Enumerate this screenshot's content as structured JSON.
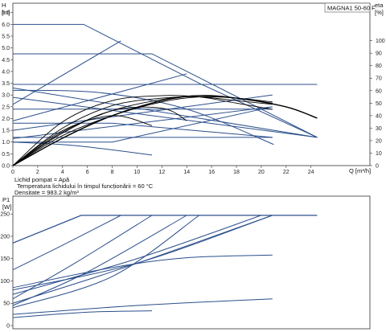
{
  "chart_data": [
    {
      "type": "line",
      "title": "MAGNA1 50-60 F",
      "ylabel_left": [
        "H",
        "[m]"
      ],
      "ylabel_right": [
        "eta",
        "[%]"
      ],
      "xlabel": "Q [m³/h]",
      "x_ticks": [
        0,
        2,
        4,
        6,
        8,
        10,
        12,
        14,
        16,
        18,
        20,
        22,
        24
      ],
      "y_ticks_left": [
        "0.0",
        "0.5",
        "1.0",
        "1.5",
        "2.0",
        "2.5",
        "3.0",
        "3.5",
        "4.0",
        "4.5",
        "5.0",
        "5.5",
        "6.0",
        "6.5"
      ],
      "y_ticks_right": [
        0,
        10,
        20,
        30,
        40,
        50,
        60,
        70,
        80,
        90,
        100
      ],
      "xlim": [
        0,
        27
      ],
      "ylim_left": [
        0,
        6.9
      ],
      "ylim_right": [
        0,
        130
      ],
      "grid": false,
      "series": [
        {
          "role": "head",
          "x": [
            0,
            5.7,
            15,
            24.5
          ],
          "y": [
            6.0,
            6.0,
            3.5,
            1.2
          ]
        },
        {
          "role": "head",
          "x": [
            0,
            11.2,
            24.5
          ],
          "y": [
            4.75,
            4.75,
            1.2
          ]
        },
        {
          "role": "head",
          "x": [
            0,
            24.5
          ],
          "y": [
            3.45,
            3.45
          ]
        },
        {
          "role": "head",
          "x": [
            0,
            24.5
          ],
          "y": [
            3.3,
            1.2
          ]
        },
        {
          "role": "head",
          "x": [
            0,
            24.5
          ],
          "y": [
            2.9,
            1.2
          ]
        },
        {
          "role": "head",
          "x": [
            0,
            20.9
          ],
          "y": [
            2.4,
            2.4
          ]
        },
        {
          "role": "head",
          "x": [
            0,
            8,
            20.9
          ],
          "y": [
            1.8,
            1.8,
            1.2
          ]
        },
        {
          "role": "head",
          "x": [
            0,
            20.9
          ],
          "y": [
            1.2,
            1.2
          ]
        },
        {
          "role": "head",
          "x": [
            0,
            8,
            20.9
          ],
          "y": [
            1.0,
            1.0,
            2.5
          ]
        },
        {
          "role": "head",
          "x": [
            0,
            5,
            11.2
          ],
          "y": [
            1.0,
            0.85,
            0.45
          ]
        },
        {
          "role": "proportional",
          "x": [
            0,
            8.7
          ],
          "y": [
            2.6,
            5.3
          ]
        },
        {
          "role": "proportional",
          "x": [
            0,
            14
          ],
          "y": [
            1.9,
            3.9
          ]
        },
        {
          "role": "proportional",
          "x": [
            0,
            20.9
          ],
          "y": [
            1.5,
            3.0
          ]
        },
        {
          "role": "proportional",
          "x": [
            0,
            20.9
          ],
          "y": [
            1.15,
            2.5
          ]
        },
        {
          "role": "const-curve",
          "x": [
            0,
            7,
            14,
            21
          ],
          "y": [
            3.2,
            3.1,
            2.4,
            0.9
          ]
        },
        {
          "role": "efficiency",
          "x": [
            0,
            4,
            8,
            12,
            15,
            18,
            20.9
          ],
          "y": [
            0,
            35,
            52,
            56,
            55,
            50,
            45
          ]
        },
        {
          "role": "efficiency",
          "x": [
            0,
            4,
            8,
            12,
            15,
            18,
            20.9
          ],
          "y": [
            0,
            30,
            48,
            54,
            55,
            52,
            49
          ]
        },
        {
          "role": "efficiency",
          "x": [
            0,
            4,
            8,
            12,
            15,
            18,
            20.9
          ],
          "y": [
            0,
            27,
            44,
            53,
            56,
            54,
            50
          ]
        },
        {
          "role": "efficiency",
          "x": [
            0,
            4,
            8,
            12,
            15,
            18,
            20.9
          ],
          "y": [
            0,
            24,
            40,
            51,
            55,
            54,
            51
          ]
        },
        {
          "role": "efficiency",
          "x": [
            0,
            4,
            8,
            12,
            15,
            18,
            22,
            24.5
          ],
          "y": [
            0,
            22,
            40,
            52,
            56,
            54,
            47,
            38
          ]
        },
        {
          "role": "efficiency",
          "x": [
            0,
            4,
            8,
            11.2
          ],
          "y": [
            0,
            28,
            40,
            32
          ]
        },
        {
          "role": "efficiency",
          "x": [
            0,
            4,
            8,
            12,
            14
          ],
          "y": [
            0,
            26,
            44,
            46,
            36
          ]
        }
      ]
    },
    {
      "type": "line",
      "title": "",
      "ylabel": [
        "P1",
        "[W]"
      ],
      "xlabel": "",
      "y_ticks": [
        0,
        50,
        100,
        150,
        200,
        250
      ],
      "xlim": [
        0,
        27
      ],
      "ylim": [
        0,
        290
      ],
      "grid": false,
      "series": [
        {
          "x": [
            0,
            5.5,
            24.5
          ],
          "y": [
            185,
            247,
            247
          ]
        },
        {
          "x": [
            0,
            4,
            8.7
          ],
          "y": [
            125,
            180,
            247
          ]
        },
        {
          "x": [
            0,
            5,
            11.2
          ],
          "y": [
            60,
            140,
            247
          ]
        },
        {
          "x": [
            0,
            6,
            14
          ],
          "y": [
            45,
            120,
            247
          ]
        },
        {
          "x": [
            0,
            8,
            15
          ],
          "y": [
            40,
            110,
            247
          ]
        },
        {
          "x": [
            0,
            9,
            20.9
          ],
          "y": [
            50,
            130,
            247
          ]
        },
        {
          "x": [
            0,
            10,
            20
          ],
          "y": [
            70,
            150,
            247
          ]
        },
        {
          "x": [
            0,
            10,
            20.9
          ],
          "y": [
            80,
            140,
            247
          ]
        },
        {
          "x": [
            0,
            8,
            14,
            20.9
          ],
          "y": [
            85,
            130,
            152,
            158
          ]
        },
        {
          "x": [
            0,
            10,
            20.9
          ],
          "y": [
            25,
            45,
            60
          ]
        },
        {
          "x": [
            0,
            6,
            11.2
          ],
          "y": [
            18,
            30,
            33
          ]
        }
      ]
    }
  ],
  "info": {
    "line1": "Lichid pompat = Apă",
    "line2": "Temperatura lichidului în timpul funcționării = 60  °C",
    "line3": "Densitate = 983.2  kg/m³"
  },
  "colors": {
    "curve": "#2b4f8c",
    "eff": "#000000",
    "axis": "#222222"
  }
}
